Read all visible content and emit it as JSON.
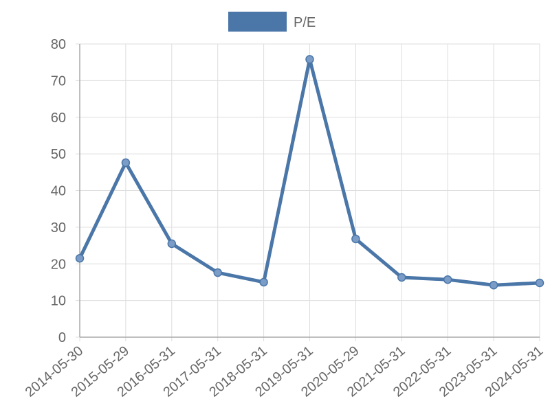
{
  "chart_data": {
    "type": "line",
    "x": [
      "2014-05-30",
      "2015-05-29",
      "2016-05-31",
      "2017-05-31",
      "2018-05-31",
      "2019-05-31",
      "2020-05-29",
      "2021-05-31",
      "2022-05-31",
      "2023-05-31",
      "2024-05-31"
    ],
    "series": [
      {
        "name": "P/E",
        "color": "#4a76a8",
        "values": [
          21.5,
          47.6,
          25.5,
          17.6,
          15.0,
          75.8,
          26.8,
          16.3,
          15.7,
          14.2,
          14.8
        ]
      }
    ],
    "ylim": [
      0,
      80
    ],
    "yticks": [
      0,
      10,
      20,
      30,
      40,
      50,
      60,
      70,
      80
    ],
    "grid": true,
    "legend": "top"
  }
}
